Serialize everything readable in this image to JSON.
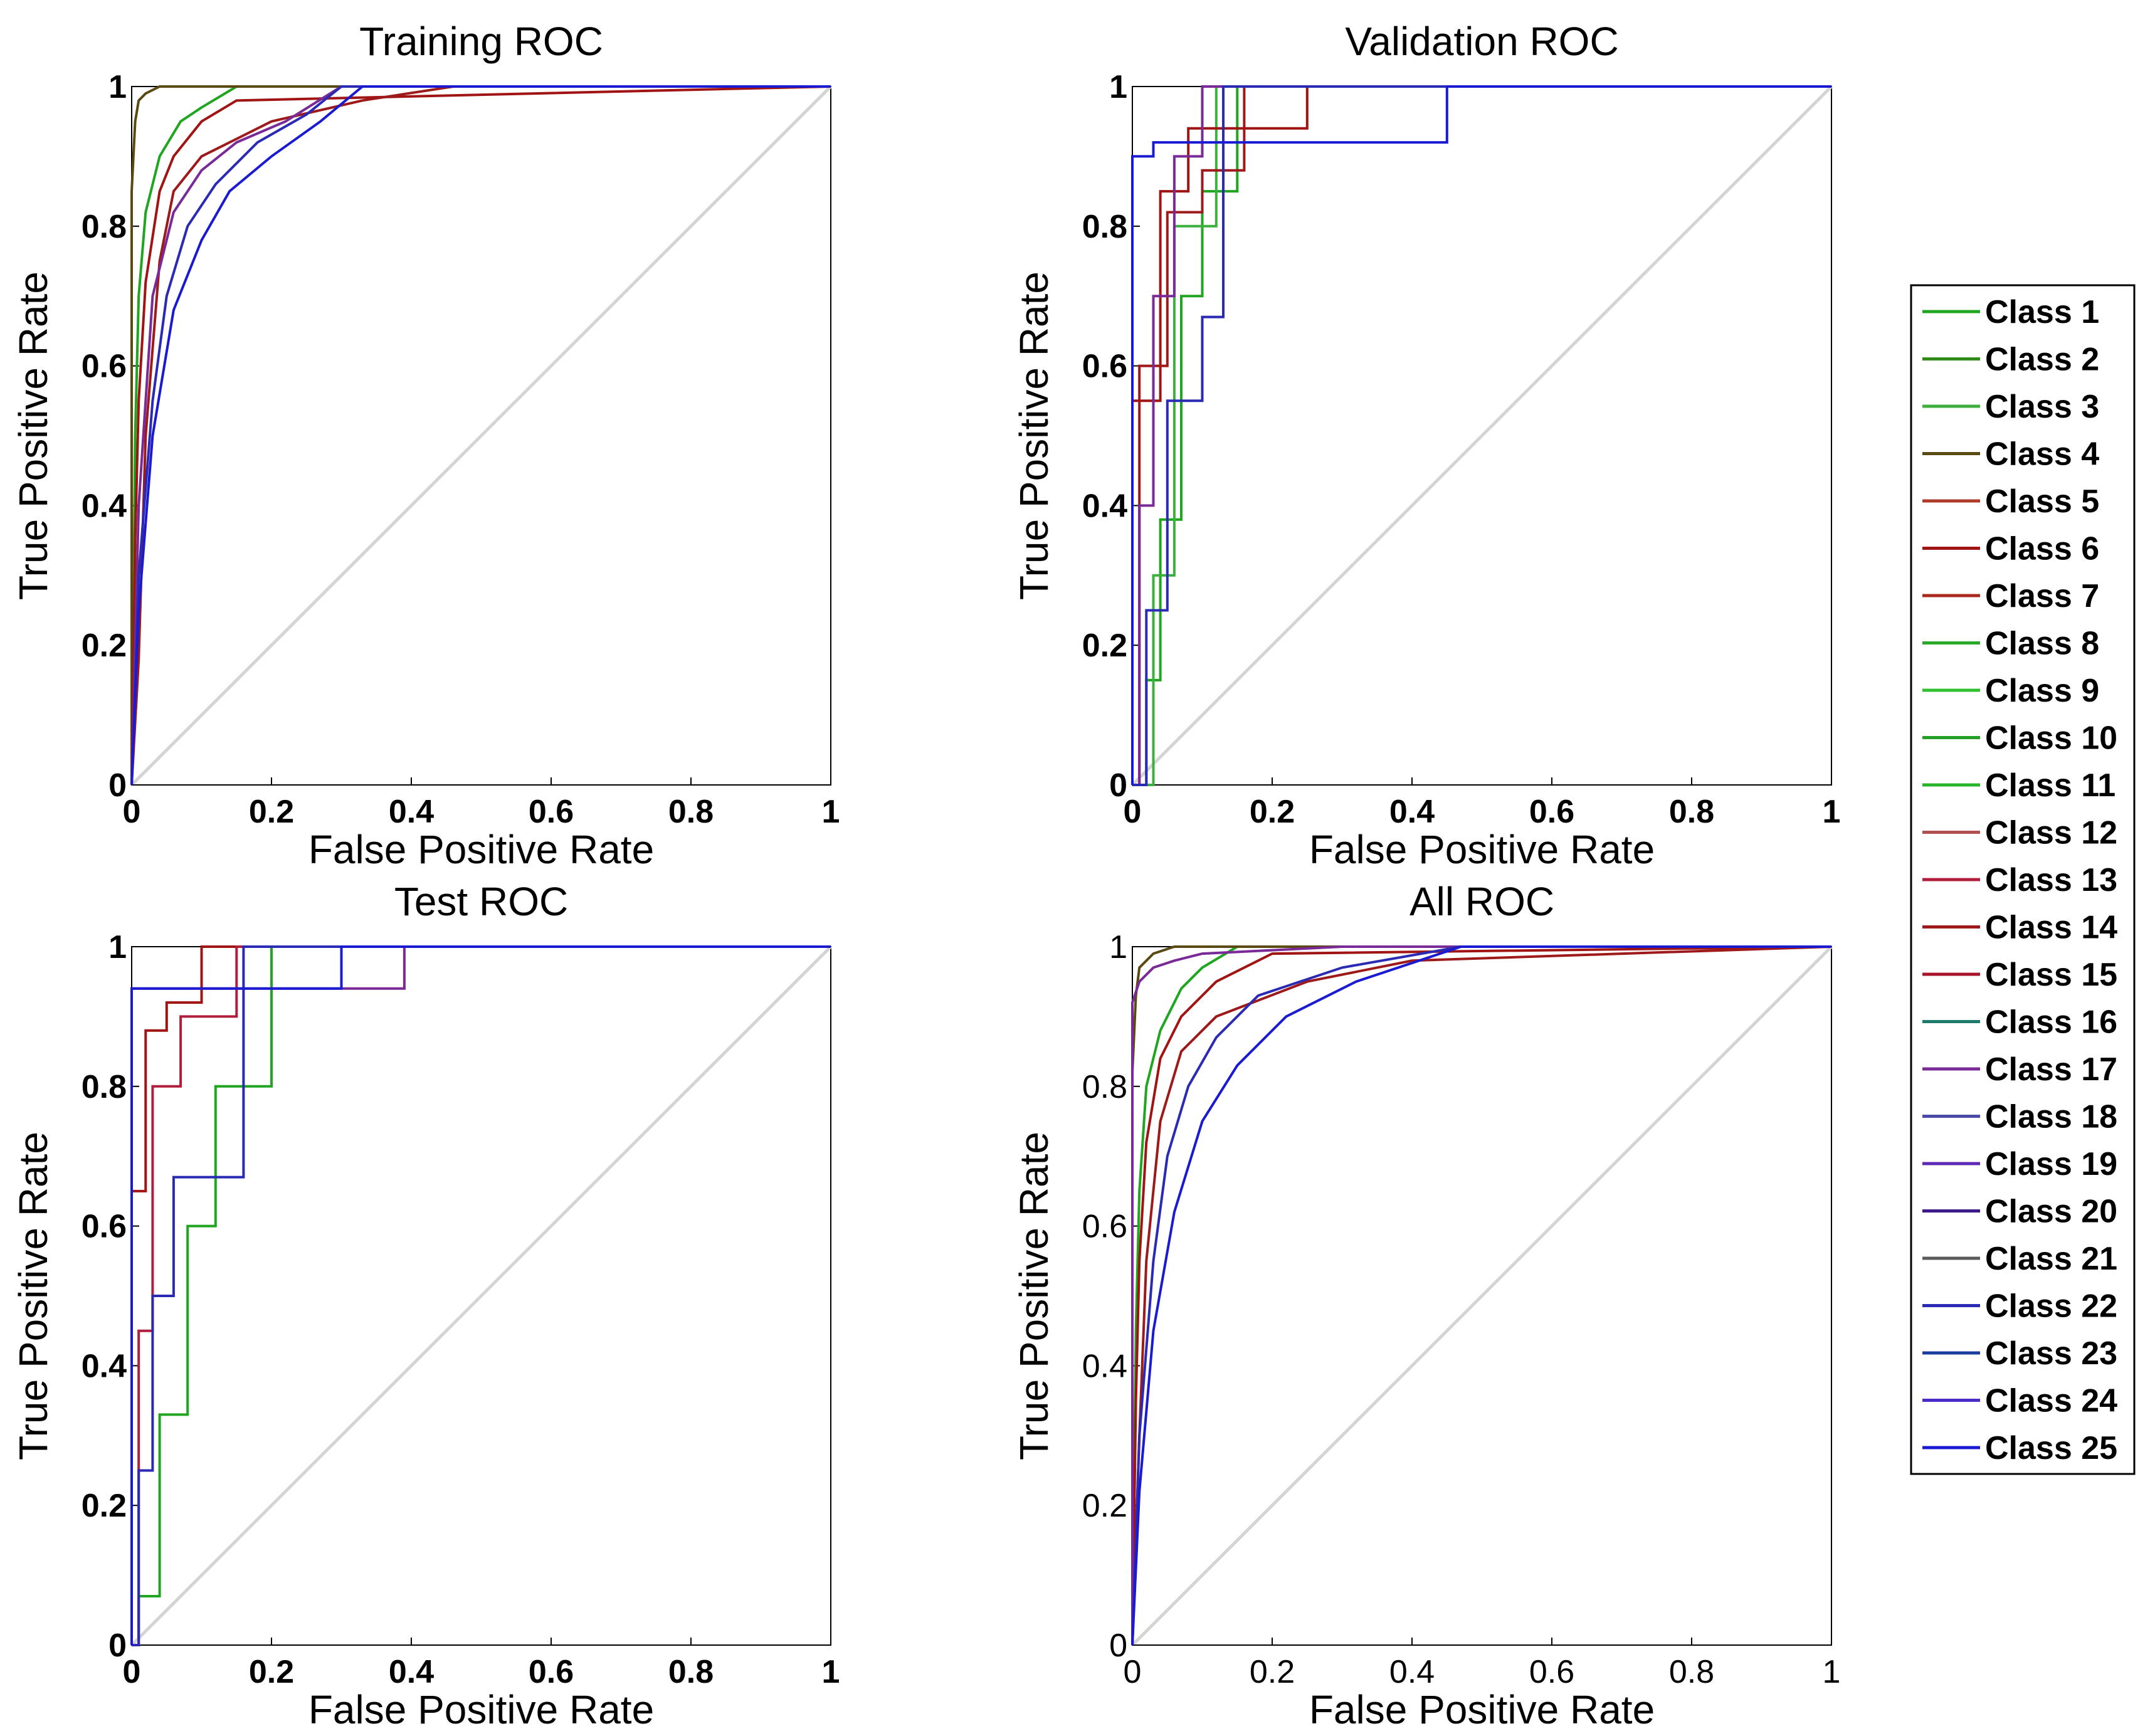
{
  "legend": {
    "placement": "right",
    "entries": [
      {
        "label": "Class 1",
        "color": "#1fa51f"
      },
      {
        "label": "Class 2",
        "color": "#2f8a1a"
      },
      {
        "label": "Class 3",
        "color": "#3cb03c"
      },
      {
        "label": "Class 4",
        "color": "#5a4a12"
      },
      {
        "label": "Class 5",
        "color": "#b03a2a"
      },
      {
        "label": "Class 6",
        "color": "#a01414"
      },
      {
        "label": "Class 7",
        "color": "#a8281e"
      },
      {
        "label": "Class 8",
        "color": "#2aa82a"
      },
      {
        "label": "Class 9",
        "color": "#30c030"
      },
      {
        "label": "Class 10",
        "color": "#24a024"
      },
      {
        "label": "Class 11",
        "color": "#28b428"
      },
      {
        "label": "Class 12",
        "color": "#b05050"
      },
      {
        "label": "Class 13",
        "color": "#b01e3c"
      },
      {
        "label": "Class 14",
        "color": "#9e1a1a"
      },
      {
        "label": "Class 15",
        "color": "#a8142c"
      },
      {
        "label": "Class 16",
        "color": "#1e7a6a"
      },
      {
        "label": "Class 17",
        "color": "#7a2a96"
      },
      {
        "label": "Class 18",
        "color": "#4a4aa8"
      },
      {
        "label": "Class 19",
        "color": "#5a28b4"
      },
      {
        "label": "Class 20",
        "color": "#3c1a8c"
      },
      {
        "label": "Class 21",
        "color": "#5a5a5a"
      },
      {
        "label": "Class 22",
        "color": "#2a2ab4"
      },
      {
        "label": "Class 23",
        "color": "#1a3c9e"
      },
      {
        "label": "Class 24",
        "color": "#4a2ac8"
      },
      {
        "label": "Class 25",
        "color": "#1a1ad2"
      }
    ]
  },
  "chart_data": [
    {
      "type": "line",
      "title": "Training ROC",
      "xlabel": "False Positive Rate",
      "ylabel": "True Positive Rate",
      "xlim": [
        0,
        1
      ],
      "ylim": [
        0,
        1
      ],
      "xticks": [
        "0",
        "0.2",
        "0.4",
        "0.6",
        "0.8",
        "1"
      ],
      "yticks": [
        "0",
        "0.2",
        "0.4",
        "0.6",
        "0.8",
        "1"
      ],
      "tick_style": "bold",
      "grid": false,
      "reference_line": {
        "x": [
          0,
          1
        ],
        "y": [
          0,
          1
        ],
        "color": "#d4d4d4"
      },
      "series": [
        {
          "name": "Class 1",
          "x": [
            0,
            0.005,
            0.01,
            0.02,
            0.04,
            0.07,
            0.1,
            0.15,
            1
          ],
          "y": [
            0,
            0.5,
            0.7,
            0.82,
            0.9,
            0.95,
            0.97,
            1,
            1
          ]
        },
        {
          "name": "Class 4",
          "x": [
            0,
            0,
            0.005,
            0.01,
            0.02,
            0.04,
            1
          ],
          "y": [
            0,
            0.85,
            0.95,
            0.98,
            0.99,
            1,
            1
          ]
        },
        {
          "name": "Class 6",
          "x": [
            0,
            0.005,
            0.01,
            0.02,
            0.04,
            0.06,
            0.1,
            0.15,
            1
          ],
          "y": [
            0,
            0.35,
            0.55,
            0.72,
            0.85,
            0.9,
            0.95,
            0.98,
            1
          ]
        },
        {
          "name": "Class 14",
          "x": [
            0,
            0.01,
            0.02,
            0.04,
            0.06,
            0.1,
            0.2,
            0.33,
            0.46,
            1
          ],
          "y": [
            0,
            0.18,
            0.5,
            0.75,
            0.85,
            0.9,
            0.95,
            0.98,
            1,
            1
          ]
        },
        {
          "name": "Class 17",
          "x": [
            0,
            0.01,
            0.03,
            0.06,
            0.1,
            0.15,
            0.22,
            0.3,
            1
          ],
          "y": [
            0,
            0.4,
            0.7,
            0.82,
            0.88,
            0.92,
            0.95,
            1,
            1
          ]
        },
        {
          "name": "Class 22",
          "x": [
            0,
            0.01,
            0.03,
            0.05,
            0.08,
            0.12,
            0.18,
            0.25,
            0.3,
            1
          ],
          "y": [
            0,
            0.3,
            0.55,
            0.7,
            0.8,
            0.86,
            0.92,
            0.96,
            1,
            1
          ]
        },
        {
          "name": "Class 25",
          "x": [
            0,
            0.01,
            0.03,
            0.06,
            0.1,
            0.14,
            0.2,
            0.27,
            0.33,
            1
          ],
          "y": [
            0,
            0.25,
            0.5,
            0.68,
            0.78,
            0.85,
            0.9,
            0.95,
            1,
            1
          ]
        }
      ]
    },
    {
      "type": "line",
      "title": "Validation ROC",
      "xlabel": "False Positive Rate",
      "ylabel": "True Positive Rate",
      "xlim": [
        0,
        1
      ],
      "ylim": [
        0,
        1
      ],
      "xticks": [
        "0",
        "0.2",
        "0.4",
        "0.6",
        "0.8",
        "1"
      ],
      "yticks": [
        "0",
        "0.2",
        "0.4",
        "0.6",
        "0.8",
        "1"
      ],
      "tick_style": "bold",
      "grid": false,
      "reference_line": {
        "x": [
          0,
          1
        ],
        "y": [
          0,
          1
        ],
        "color": "#d4d4d4"
      },
      "series": [
        {
          "name": "Class 1",
          "x": [
            0,
            0.02,
            0.02,
            0.04,
            0.04,
            0.07,
            0.07,
            0.1,
            0.1,
            0.15,
            0.15,
            1
          ],
          "y": [
            0,
            0,
            0.15,
            0.15,
            0.38,
            0.38,
            0.7,
            0.7,
            0.85,
            0.85,
            1,
            1
          ]
        },
        {
          "name": "Class 3",
          "x": [
            0,
            0.03,
            0.03,
            0.06,
            0.06,
            0.12,
            0.12,
            1
          ],
          "y": [
            0,
            0,
            0.3,
            0.3,
            0.8,
            0.8,
            1,
            1
          ]
        },
        {
          "name": "Class 6",
          "x": [
            0,
            0,
            0.04,
            0.04,
            0.08,
            0.08,
            0.25,
            0.25,
            1
          ],
          "y": [
            0,
            0.55,
            0.55,
            0.85,
            0.85,
            0.94,
            0.94,
            1,
            1
          ]
        },
        {
          "name": "Class 14",
          "x": [
            0,
            0.01,
            0.01,
            0.05,
            0.05,
            0.1,
            0.1,
            0.16,
            0.16,
            1
          ],
          "y": [
            0,
            0,
            0.6,
            0.6,
            0.82,
            0.82,
            0.88,
            0.88,
            1,
            1
          ]
        },
        {
          "name": "Class 17",
          "x": [
            0,
            0.01,
            0.01,
            0.03,
            0.03,
            0.06,
            0.06,
            0.1,
            0.1,
            1
          ],
          "y": [
            0,
            0,
            0.4,
            0.4,
            0.7,
            0.7,
            0.9,
            0.9,
            1,
            1
          ]
        },
        {
          "name": "Class 22",
          "x": [
            0,
            0.02,
            0.02,
            0.05,
            0.05,
            0.1,
            0.1,
            0.13,
            0.13,
            1
          ],
          "y": [
            0,
            0,
            0.25,
            0.25,
            0.55,
            0.55,
            0.67,
            0.67,
            1,
            1
          ]
        },
        {
          "name": "Class 25",
          "x": [
            0,
            0,
            0.03,
            0.03,
            0.45,
            0.45,
            1
          ],
          "y": [
            0,
            0.9,
            0.9,
            0.92,
            0.92,
            1,
            1
          ]
        }
      ]
    },
    {
      "type": "line",
      "title": "Test ROC",
      "xlabel": "False Positive Rate",
      "ylabel": "True Positive Rate",
      "xlim": [
        0,
        1
      ],
      "ylim": [
        0,
        1
      ],
      "xticks": [
        "0",
        "0.2",
        "0.4",
        "0.6",
        "0.8",
        "1"
      ],
      "yticks": [
        "0",
        "0.2",
        "0.4",
        "0.6",
        "0.8",
        "1"
      ],
      "tick_style": "bold",
      "grid": false,
      "reference_line": {
        "x": [
          0,
          1
        ],
        "y": [
          0,
          1
        ],
        "color": "#d4d4d4"
      },
      "series": [
        {
          "name": "Class 1",
          "x": [
            0,
            0.01,
            0.01,
            0.04,
            0.04,
            0.08,
            0.08,
            0.12,
            0.12,
            0.2,
            0.2,
            1
          ],
          "y": [
            0,
            0,
            0.07,
            0.07,
            0.33,
            0.33,
            0.6,
            0.6,
            0.8,
            0.8,
            1,
            1
          ]
        },
        {
          "name": "Class 6",
          "x": [
            0,
            0,
            0.02,
            0.02,
            0.05,
            0.05,
            0.1,
            0.1,
            1
          ],
          "y": [
            0,
            0.65,
            0.65,
            0.88,
            0.88,
            0.92,
            0.92,
            1,
            1
          ]
        },
        {
          "name": "Class 13",
          "x": [
            0,
            0.01,
            0.01,
            0.03,
            0.03,
            0.07,
            0.07,
            0.15,
            0.15,
            1
          ],
          "y": [
            0,
            0,
            0.45,
            0.45,
            0.8,
            0.8,
            0.9,
            0.9,
            1,
            1
          ]
        },
        {
          "name": "Class 17",
          "x": [
            0,
            0,
            0.39,
            0.39,
            1
          ],
          "y": [
            0,
            0.94,
            0.94,
            1,
            1
          ]
        },
        {
          "name": "Class 22",
          "x": [
            0,
            0.01,
            0.01,
            0.03,
            0.03,
            0.06,
            0.06,
            0.16,
            0.16,
            1
          ],
          "y": [
            0,
            0,
            0.25,
            0.25,
            0.5,
            0.5,
            0.67,
            0.67,
            1,
            1
          ]
        },
        {
          "name": "Class 25",
          "x": [
            0,
            0,
            0.3,
            0.3,
            1
          ],
          "y": [
            0,
            0.94,
            0.94,
            1,
            1
          ]
        }
      ]
    },
    {
      "type": "line",
      "title": "All ROC",
      "xlabel": "False Positive Rate",
      "ylabel": "True Positive Rate",
      "xlim": [
        0,
        1
      ],
      "ylim": [
        0,
        1
      ],
      "xticks": [
        "0",
        "0.2",
        "0.4",
        "0.6",
        "0.8",
        "1"
      ],
      "yticks": [
        "0",
        "0.2",
        "0.4",
        "0.6",
        "0.8",
        "1"
      ],
      "tick_style": "normal",
      "grid": false,
      "reference_line": {
        "x": [
          0,
          1
        ],
        "y": [
          0,
          1
        ],
        "color": "#d4d4d4"
      },
      "series": [
        {
          "name": "Class 1",
          "x": [
            0,
            0.005,
            0.01,
            0.02,
            0.04,
            0.07,
            0.1,
            0.15,
            1
          ],
          "y": [
            0,
            0.45,
            0.65,
            0.8,
            0.88,
            0.94,
            0.97,
            1,
            1
          ]
        },
        {
          "name": "Class 4",
          "x": [
            0,
            0,
            0.005,
            0.01,
            0.03,
            0.06,
            1
          ],
          "y": [
            0,
            0.82,
            0.93,
            0.97,
            0.99,
            1,
            1
          ]
        },
        {
          "name": "Class 6",
          "x": [
            0,
            0.005,
            0.01,
            0.02,
            0.04,
            0.07,
            0.12,
            0.2,
            1
          ],
          "y": [
            0,
            0.35,
            0.55,
            0.72,
            0.84,
            0.9,
            0.95,
            0.99,
            1
          ]
        },
        {
          "name": "Class 14",
          "x": [
            0,
            0.01,
            0.02,
            0.04,
            0.07,
            0.12,
            0.25,
            0.4,
            1
          ],
          "y": [
            0,
            0.3,
            0.55,
            0.75,
            0.85,
            0.9,
            0.95,
            0.98,
            1
          ]
        },
        {
          "name": "Class 17",
          "x": [
            0,
            0,
            0.01,
            0.03,
            0.06,
            0.1,
            0.2,
            0.3,
            1
          ],
          "y": [
            0,
            0.92,
            0.95,
            0.97,
            0.98,
            0.99,
            0.995,
            1,
            1
          ]
        },
        {
          "name": "Class 22",
          "x": [
            0,
            0.01,
            0.03,
            0.05,
            0.08,
            0.12,
            0.18,
            0.3,
            0.47,
            1
          ],
          "y": [
            0,
            0.3,
            0.55,
            0.7,
            0.8,
            0.87,
            0.93,
            0.97,
            1,
            1
          ]
        },
        {
          "name": "Class 25",
          "x": [
            0,
            0.01,
            0.03,
            0.06,
            0.1,
            0.15,
            0.22,
            0.32,
            0.47,
            1
          ],
          "y": [
            0,
            0.22,
            0.45,
            0.62,
            0.75,
            0.83,
            0.9,
            0.95,
            1,
            1
          ]
        }
      ]
    }
  ]
}
